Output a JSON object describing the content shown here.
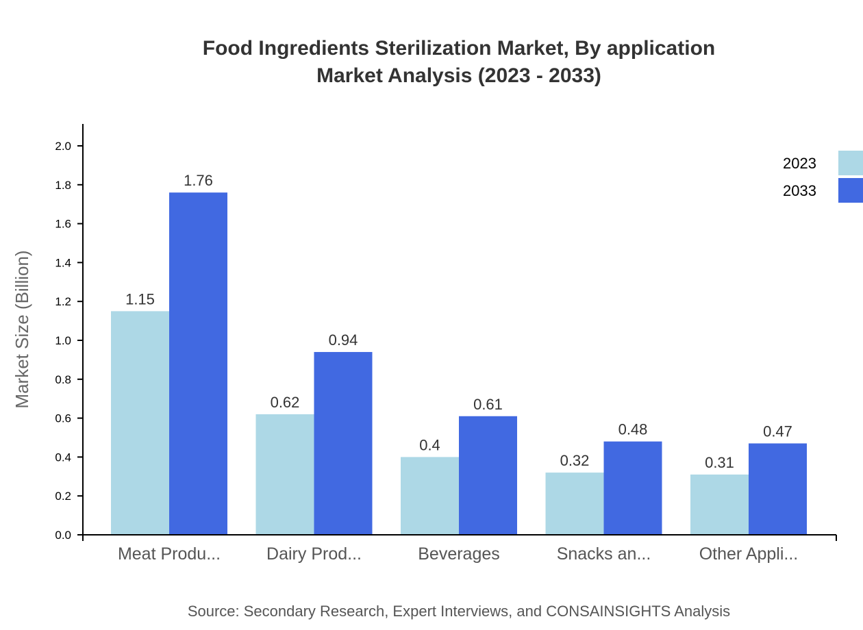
{
  "chart_data": {
    "type": "bar",
    "title": "Food Ingredients Sterilization Market, By application",
    "subtitle": "Market Analysis (2023 - 2033)",
    "xlabel": "",
    "ylabel": "Market Size (Billion)",
    "ylim": [
      0,
      2.1
    ],
    "yticks": [
      "0.0",
      "0.2",
      "0.4",
      "0.6",
      "0.8",
      "1.0",
      "1.2",
      "1.4",
      "1.6",
      "1.8",
      "2.0"
    ],
    "categories": [
      "Meat Produ...",
      "Dairy Prod...",
      "Beverages",
      "Snacks an...",
      "Other Appli..."
    ],
    "series": [
      {
        "name": "2023",
        "color": "#add8e6",
        "values": [
          1.15,
          0.62,
          0.4,
          0.32,
          0.31
        ]
      },
      {
        "name": "2033",
        "color": "#4169e1",
        "values": [
          1.76,
          0.94,
          0.61,
          0.48,
          0.47
        ]
      }
    ],
    "legend": "top-right",
    "grid": false,
    "source": "Source: Secondary Research, Expert Interviews, and CONSAINSIGHTS Analysis"
  }
}
